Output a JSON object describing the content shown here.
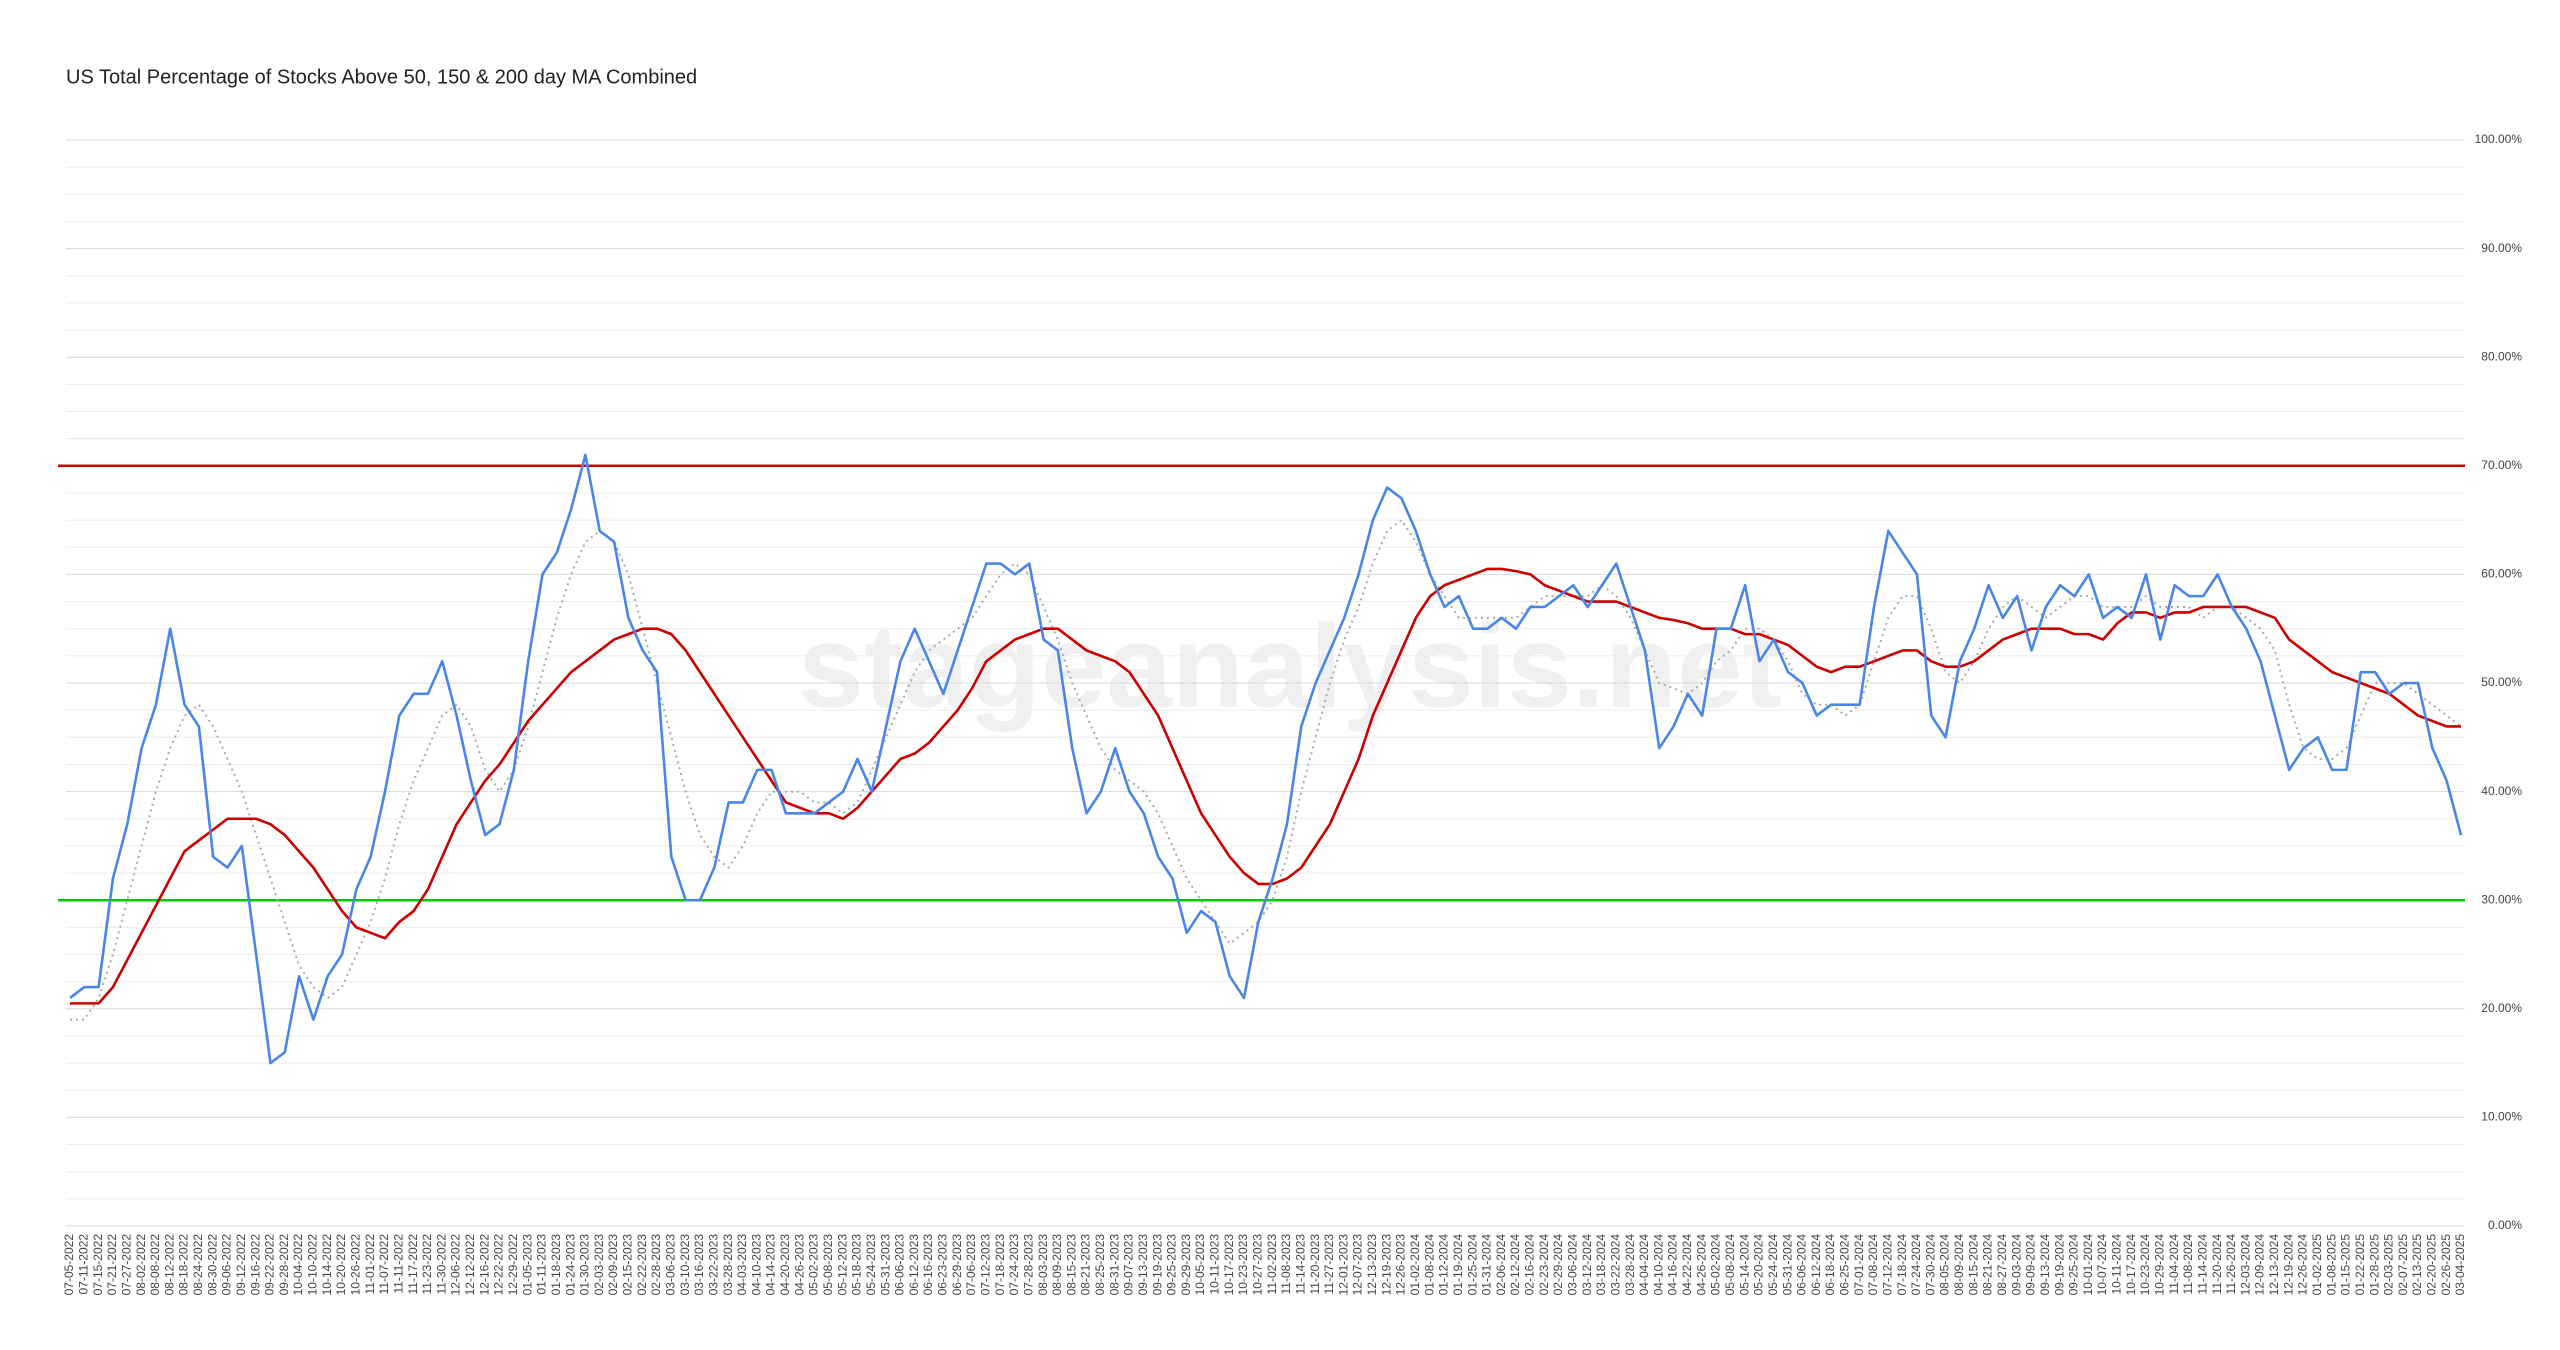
{
  "chart_data": {
    "type": "line",
    "title": "US Total Percentage of Stocks Above 50, 150 & 200 day MA Combined",
    "watermark": "stageanalysis.net",
    "categories": [
      "07-05-2022",
      "07-11-2022",
      "07-15-2022",
      "07-21-2022",
      "07-27-2022",
      "08-02-2022",
      "08-08-2022",
      "08-12-2022",
      "08-18-2022",
      "08-24-2022",
      "08-30-2022",
      "09-06-2022",
      "09-12-2022",
      "09-16-2022",
      "09-22-2022",
      "09-28-2022",
      "10-04-2022",
      "10-10-2022",
      "10-14-2022",
      "10-20-2022",
      "10-26-2022",
      "11-01-2022",
      "11-07-2022",
      "11-11-2022",
      "11-17-2022",
      "11-23-2022",
      "11-30-2022",
      "12-06-2022",
      "12-12-2022",
      "12-16-2022",
      "12-22-2022",
      "12-29-2022",
      "01-05-2023",
      "01-11-2023",
      "01-18-2023",
      "01-24-2023",
      "01-30-2023",
      "02-03-2023",
      "02-09-2023",
      "02-15-2023",
      "02-22-2023",
      "02-28-2023",
      "03-06-2023",
      "03-10-2023",
      "03-16-2023",
      "03-22-2023",
      "03-28-2023",
      "04-03-2023",
      "04-10-2023",
      "04-14-2023",
      "04-20-2023",
      "04-26-2023",
      "05-02-2023",
      "05-08-2023",
      "05-12-2023",
      "05-18-2023",
      "05-24-2023",
      "05-31-2023",
      "06-06-2023",
      "06-12-2023",
      "06-16-2023",
      "06-23-2023",
      "06-29-2023",
      "07-06-2023",
      "07-12-2023",
      "07-18-2023",
      "07-24-2023",
      "07-28-2023",
      "08-03-2023",
      "08-09-2023",
      "08-15-2023",
      "08-21-2023",
      "08-25-2023",
      "08-31-2023",
      "09-07-2023",
      "09-13-2023",
      "09-19-2023",
      "09-25-2023",
      "09-29-2023",
      "10-05-2023",
      "10-11-2023",
      "10-17-2023",
      "10-23-2023",
      "10-27-2023",
      "11-02-2023",
      "11-08-2023",
      "11-14-2023",
      "11-20-2023",
      "11-27-2023",
      "12-01-2023",
      "12-07-2023",
      "12-13-2023",
      "12-19-2023",
      "12-26-2023",
      "01-02-2024",
      "01-08-2024",
      "01-12-2024",
      "01-19-2024",
      "01-25-2024",
      "01-31-2024",
      "02-06-2024",
      "02-12-2024",
      "02-16-2024",
      "02-23-2024",
      "02-29-2024",
      "03-06-2024",
      "03-12-2024",
      "03-18-2024",
      "03-22-2024",
      "03-28-2024",
      "04-04-2024",
      "04-10-2024",
      "04-16-2024",
      "04-22-2024",
      "04-26-2024",
      "05-02-2024",
      "05-08-2024",
      "05-14-2024",
      "05-20-2024",
      "05-24-2024",
      "05-31-2024",
      "06-06-2024",
      "06-12-2024",
      "06-18-2024",
      "06-25-2024",
      "07-01-2024",
      "07-08-2024",
      "07-12-2024",
      "07-18-2024",
      "07-24-2024",
      "07-30-2024",
      "08-05-2024",
      "08-09-2024",
      "08-15-2024",
      "08-21-2024",
      "08-27-2024",
      "09-03-2024",
      "09-09-2024",
      "09-13-2024",
      "09-19-2024",
      "09-25-2024",
      "10-01-2024",
      "10-07-2024",
      "10-11-2024",
      "10-17-2024",
      "10-23-2024",
      "10-29-2024",
      "11-04-2024",
      "11-08-2024",
      "11-14-2024",
      "11-20-2024",
      "11-26-2024",
      "12-03-2024",
      "12-09-2024",
      "12-13-2024",
      "12-19-2024",
      "12-26-2024",
      "01-02-2025",
      "01-08-2025",
      "01-15-2025",
      "01-22-2025",
      "01-28-2025",
      "02-03-2025",
      "02-07-2025",
      "02-13-2025",
      "02-20-2025",
      "02-26-2025",
      "03-04-2025"
    ],
    "series": [
      {
        "color": "#aaaaaa",
        "dash": "dotted",
        "values": [
          19,
          19,
          21,
          25,
          30,
          35,
          40,
          44,
          47,
          48,
          46,
          43,
          40,
          36,
          32,
          28,
          24,
          22,
          21,
          22,
          25,
          28,
          32,
          37,
          41,
          44,
          47,
          48,
          46,
          42,
          40,
          42,
          46,
          51,
          56,
          60,
          63,
          64,
          63,
          60,
          55,
          50,
          45,
          40,
          36,
          34,
          33,
          35,
          38,
          40,
          40,
          40,
          39,
          39,
          38,
          39,
          42,
          45,
          48,
          51,
          53,
          54,
          55,
          56,
          58,
          60,
          61,
          60,
          57,
          54,
          50,
          47,
          44,
          42,
          41,
          40,
          38,
          35,
          32,
          30,
          28,
          26,
          27,
          28,
          30,
          34,
          40,
          45,
          50,
          54,
          57,
          61,
          64,
          65,
          63,
          60,
          58,
          56,
          56,
          56,
          56,
          56,
          57,
          58,
          58,
          58,
          58,
          59,
          58,
          56,
          53,
          50,
          49.5,
          49,
          50,
          52,
          53,
          55,
          55,
          54,
          52,
          49,
          48,
          48,
          47,
          48,
          52,
          56,
          58,
          58,
          55,
          51,
          50,
          52,
          55,
          57,
          58,
          57,
          56,
          57,
          58,
          58,
          57,
          57,
          57,
          58,
          57,
          57,
          57,
          56,
          57,
          57,
          56,
          55,
          53,
          48,
          44,
          43,
          43,
          44,
          47,
          50,
          50,
          50,
          49,
          48,
          47,
          46
        ]
      },
      {
        "color": "#cc0000",
        "dash": "solid",
        "values": [
          20.5,
          20.5,
          20.5,
          22,
          24.5,
          27,
          29.5,
          32,
          34.5,
          35.5,
          36.5,
          37.5,
          37.5,
          37.5,
          37,
          36,
          34.5,
          33,
          31,
          29,
          27.5,
          27,
          26.5,
          28,
          29,
          31,
          34,
          37,
          39,
          41,
          42.5,
          44.5,
          46.5,
          48,
          49.5,
          51,
          52,
          53,
          54,
          54.5,
          55,
          55,
          54.5,
          53,
          51,
          49,
          47,
          45,
          43,
          41,
          39,
          38.5,
          38,
          38,
          37.5,
          38.5,
          40,
          41.5,
          43,
          43.5,
          44.5,
          46,
          47.5,
          49.5,
          52,
          53,
          54,
          54.5,
          55,
          55,
          54,
          53,
          52.5,
          52,
          51,
          49,
          47,
          44,
          41,
          38,
          36,
          34,
          32.5,
          31.5,
          31.5,
          32,
          33,
          35,
          37,
          40,
          43,
          47,
          50,
          53,
          56,
          58,
          59,
          59.5,
          60,
          60.5,
          60.5,
          60.3,
          60,
          59,
          58.5,
          58,
          57.5,
          57.5,
          57.5,
          57,
          56.5,
          56,
          55.8,
          55.5,
          55,
          55,
          55,
          54.5,
          54.5,
          54,
          53.5,
          52.5,
          51.5,
          51,
          51.5,
          51.5,
          52,
          52.5,
          53,
          53,
          52,
          51.5,
          51.5,
          52,
          53,
          54,
          54.5,
          55,
          55,
          55,
          54.5,
          54.5,
          54,
          55.5,
          56.5,
          56.5,
          56,
          56.5,
          56.5,
          57,
          57,
          57,
          57,
          56.5,
          56,
          54,
          53,
          52,
          51,
          50.5,
          50,
          49.5,
          49,
          48,
          47,
          46.5,
          46,
          46
        ]
      },
      {
        "color": "#4a86e8",
        "dash": "solid",
        "values": [
          21,
          22,
          22,
          32,
          37,
          44,
          48,
          55,
          48,
          46,
          34,
          33,
          35,
          25,
          15,
          16,
          23,
          19,
          23,
          25,
          31,
          34,
          40,
          47,
          49,
          49,
          52,
          47,
          41,
          36,
          37,
          42,
          52,
          60,
          62,
          66,
          71,
          64,
          63,
          56,
          53,
          51,
          34,
          30,
          30,
          33,
          39,
          39,
          42,
          42,
          38,
          38,
          38,
          39,
          40,
          43,
          40,
          46,
          52,
          55,
          52,
          49,
          53,
          57,
          61,
          61,
          60,
          61,
          54,
          53,
          44,
          38,
          40,
          44,
          40,
          38,
          34,
          32,
          27,
          29,
          28,
          23,
          21,
          28,
          32,
          37,
          46,
          50,
          53,
          56,
          60,
          65,
          68,
          67,
          64,
          60,
          57,
          58,
          55,
          55,
          56,
          55,
          57,
          57,
          58,
          59,
          57,
          59,
          61,
          57,
          53,
          44,
          46,
          49,
          47,
          55,
          55,
          59,
          52,
          54,
          51,
          50,
          47,
          48,
          48,
          48,
          57,
          64,
          62,
          60,
          47,
          45,
          52,
          55,
          59,
          56,
          58,
          53,
          57,
          59,
          58,
          60,
          56,
          57,
          56,
          60,
          54,
          59,
          58,
          58,
          60,
          57,
          55,
          52,
          47,
          42,
          44,
          45,
          42,
          42,
          51,
          51,
          49,
          50,
          50,
          44,
          41,
          36
        ]
      }
    ],
    "reference_lines": [
      {
        "value": 70,
        "color": "#cc0000"
      },
      {
        "value": 30,
        "color": "#00cc00"
      }
    ],
    "ylim": [
      0,
      100
    ],
    "yticks": [
      {
        "value": 0,
        "label": "0.00%"
      },
      {
        "value": 10,
        "label": "10.00%"
      },
      {
        "value": 20,
        "label": "20.00%"
      },
      {
        "value": 30,
        "label": "30.00%"
      },
      {
        "value": 40,
        "label": "40.00%"
      },
      {
        "value": 50,
        "label": "50.00%"
      },
      {
        "value": 60,
        "label": "60.00%"
      },
      {
        "value": 70,
        "label": "70.00%"
      },
      {
        "value": 80,
        "label": "80.00%"
      },
      {
        "value": 90,
        "label": "90.00%"
      },
      {
        "value": 100,
        "label": "100.00%"
      }
    ],
    "grid": true
  }
}
